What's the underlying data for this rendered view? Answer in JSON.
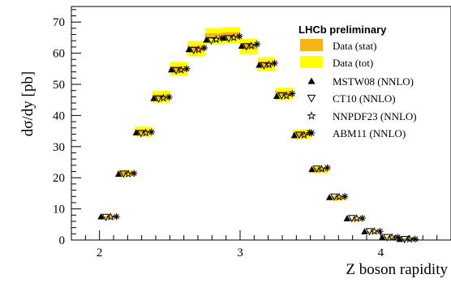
{
  "chart_data": {
    "type": "scatter",
    "title": "",
    "annotation": "LHCb preliminary",
    "xlabel": "Z boson rapidity",
    "ylabel": "dσ/dy [pb]",
    "xlim": [
      1.8,
      4.5
    ],
    "ylim": [
      0,
      75
    ],
    "x_ticks": [
      2,
      3,
      4
    ],
    "y_ticks": [
      0,
      10,
      20,
      30,
      40,
      50,
      60,
      70
    ],
    "grid": false,
    "legend_position": "top-right",
    "bin_width": 0.125,
    "data": {
      "x": [
        2.0625,
        2.1875,
        2.3125,
        2.4375,
        2.5625,
        2.6875,
        2.8125,
        2.9375,
        3.0625,
        3.1875,
        3.3125,
        3.4375,
        3.5625,
        3.6875,
        3.8125,
        3.9375,
        4.0625,
        4.1875
      ],
      "y": [
        7.3,
        21.5,
        34.8,
        46.0,
        55.0,
        61.5,
        65.5,
        65.8,
        62.2,
        56.5,
        47.0,
        34.0,
        22.5,
        13.5,
        6.5,
        2.5,
        0.8,
        0.3
      ],
      "stat_err": [
        0.3,
        0.5,
        0.6,
        0.7,
        0.8,
        0.9,
        0.9,
        0.9,
        0.9,
        0.8,
        0.8,
        0.7,
        0.6,
        0.5,
        0.35,
        0.25,
        0.15,
        0.1
      ],
      "tot_err": [
        0.5,
        1.0,
        1.6,
        1.9,
        2.2,
        2.4,
        2.6,
        2.6,
        2.5,
        2.2,
        1.9,
        1.5,
        1.0,
        0.7,
        0.4,
        0.3,
        0.2,
        0.15
      ]
    },
    "series": [
      {
        "name": "MSTW08 (NNLO)",
        "marker": "filled-triangle-up",
        "values": [
          7.5,
          21.2,
          34.5,
          45.5,
          54.7,
          61.2,
          64.3,
          64.9,
          62.3,
          56.2,
          46.2,
          33.6,
          22.7,
          13.7,
          6.9,
          2.7,
          0.85,
          0.25
        ]
      },
      {
        "name": "CT10 (NNLO)",
        "marker": "open-triangle-down",
        "values": [
          7.4,
          21.3,
          34.3,
          45.4,
          54.5,
          61.0,
          64.1,
          64.8,
          62.2,
          56.1,
          46.4,
          33.8,
          22.9,
          13.9,
          7.0,
          2.8,
          0.9,
          0.3
        ]
      },
      {
        "name": "NNPDF23 (NNLO)",
        "marker": "open-star",
        "values": [
          7.4,
          21.2,
          34.4,
          45.6,
          54.6,
          61.1,
          64.4,
          65.0,
          62.4,
          56.3,
          46.3,
          33.7,
          22.8,
          13.8,
          6.9,
          2.75,
          0.88,
          0.28
        ]
      },
      {
        "name": "ABM11 (NNLO)",
        "marker": "asterisk",
        "values": [
          7.5,
          21.4,
          34.7,
          45.9,
          55.0,
          61.7,
          64.8,
          65.4,
          62.9,
          56.8,
          47.0,
          34.5,
          23.2,
          14.0,
          7.0,
          2.8,
          0.9,
          0.3
        ]
      }
    ],
    "legend": [
      {
        "label": "Data (stat)",
        "swatch": "#f5b417"
      },
      {
        "label": "Data (tot)",
        "swatch": "#ffff00"
      },
      {
        "label": "MSTW08 (NNLO)",
        "marker": "filled-triangle-up"
      },
      {
        "label": "CT10 (NNLO)",
        "marker": "open-triangle-down"
      },
      {
        "label": "NNPDF23 (NNLO)",
        "marker": "open-star"
      },
      {
        "label": "ABM11 (NNLO)",
        "marker": "asterisk"
      }
    ],
    "colors": {
      "stat": "#f5b417",
      "tot": "#ffff00",
      "markers": "#000000"
    }
  }
}
